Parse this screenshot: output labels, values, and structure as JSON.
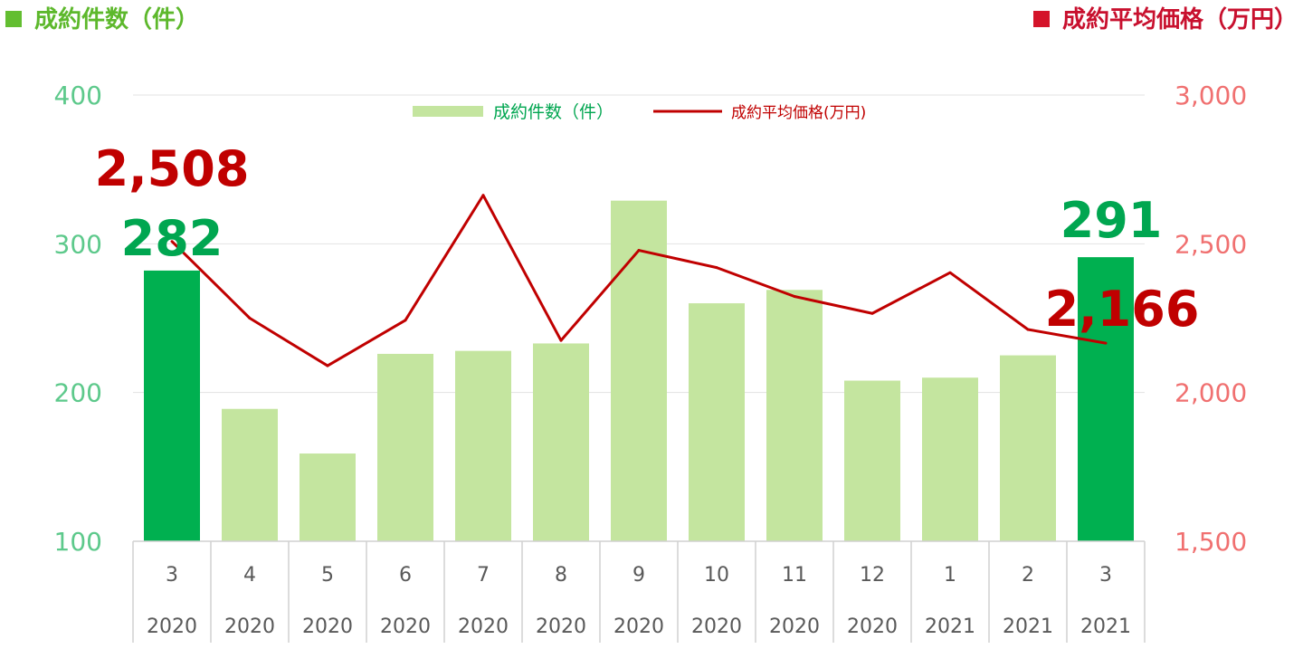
{
  "header": {
    "left_title": "成約件数（件）",
    "right_title": "成約平均価格（万円）"
  },
  "colors": {
    "bar_light": "#c4e59f",
    "bar_highlight": "#00b050",
    "line": "#c00000",
    "left_axis_text": "#5dc98b",
    "right_axis_text": "#f07070",
    "left_title": "#5db82c",
    "right_title": "#c8102e",
    "label_count": "#00a650",
    "label_price": "#c00000"
  },
  "chart_data": {
    "type": "bar",
    "months": [
      "3",
      "4",
      "5",
      "6",
      "7",
      "8",
      "9",
      "10",
      "11",
      "12",
      "1",
      "2",
      "3"
    ],
    "years": [
      "2020",
      "2020",
      "2020",
      "2020",
      "2020",
      "2020",
      "2020",
      "2020",
      "2020",
      "2020",
      "2021",
      "2021",
      "2021"
    ],
    "highlight_indices": [
      0,
      12
    ],
    "series": [
      {
        "name": "成約件数（件）",
        "type": "bar",
        "axis": "left",
        "values": [
          282,
          189,
          159,
          226,
          228,
          233,
          329,
          260,
          269,
          208,
          210,
          225,
          291
        ]
      },
      {
        "name": "成約平均価格(万円)",
        "type": "line",
        "axis": "right",
        "values": [
          2508,
          2250,
          2090,
          2243,
          2663,
          2175,
          2478,
          2420,
          2323,
          2266,
          2403,
          2212,
          2166
        ]
      }
    ],
    "left_axis": {
      "ylim": [
        100,
        400
      ],
      "ticks": [
        "100",
        "200",
        "300",
        "400"
      ]
    },
    "right_axis": {
      "ylim": [
        1500,
        3000
      ],
      "ticks": [
        "1,500",
        "2,000",
        "2,500",
        "3,000"
      ]
    },
    "annotations": {
      "count_first": "282",
      "count_last": "291",
      "price_first": "2,508",
      "price_last": "2,166"
    },
    "legend": {
      "position": "top-center"
    },
    "grid": true
  }
}
